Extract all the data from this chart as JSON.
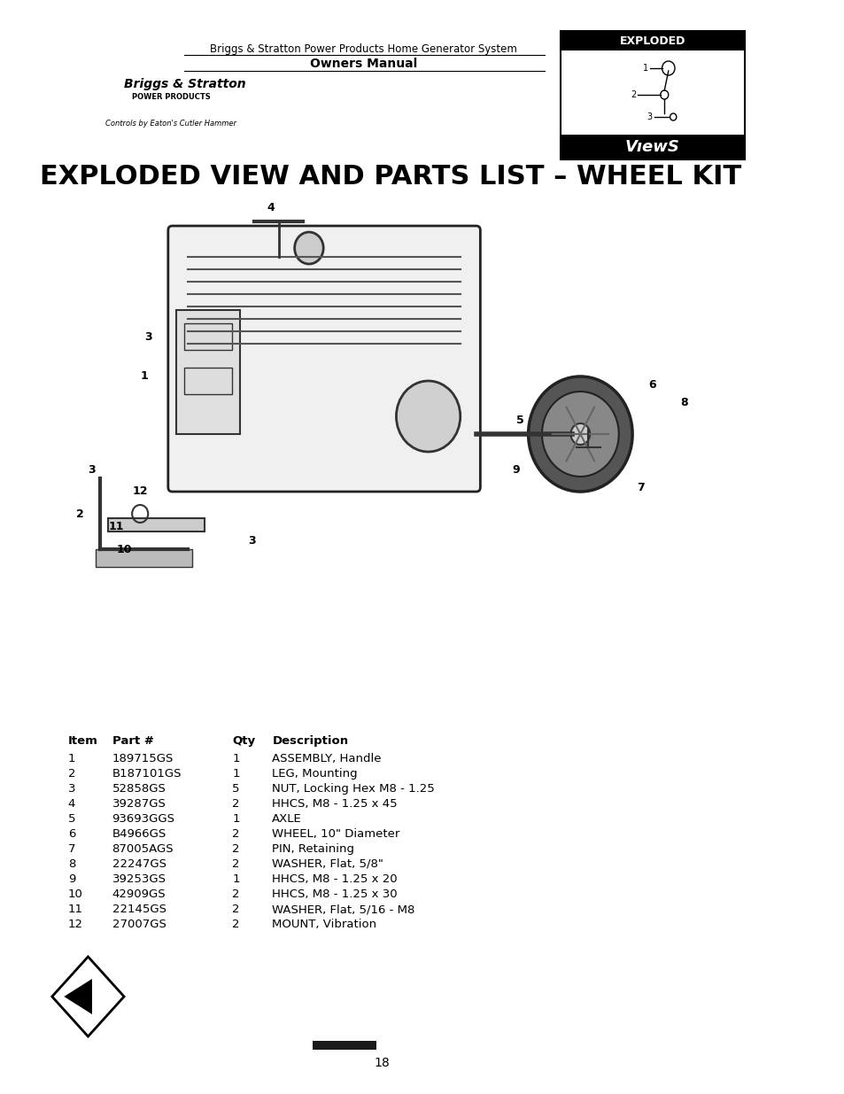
{
  "page_title": "EXPLODED VIEW AND PARTS LIST – WHEEL KIT",
  "header_line1": "Briggs & Stratton Power Products Home Generator System",
  "header_line2": "Owners Manual",
  "page_number": "18",
  "background_color": "#ffffff",
  "table_headers": [
    "Item",
    "Part #",
    "Qty",
    "Description"
  ],
  "table_rows": [
    [
      "1",
      "189715GS",
      "1",
      "ASSEMBLY, Handle"
    ],
    [
      "2",
      "B187101GS",
      "1",
      "LEG, Mounting"
    ],
    [
      "3",
      "52858GS",
      "5",
      "NUT, Locking Hex M8 - 1.25"
    ],
    [
      "4",
      "39287GS",
      "2",
      "HHCS, M8 - 1.25 x 45"
    ],
    [
      "5",
      "93693GGS",
      "1",
      "AXLE"
    ],
    [
      "6",
      "B4966GS",
      "2",
      "WHEEL, 10\" Diameter"
    ],
    [
      "7",
      "87005AGS",
      "2",
      "PIN, Retaining"
    ],
    [
      "8",
      "22247GS",
      "2",
      "WASHER, Flat, 5/8\""
    ],
    [
      "9",
      "39253GS",
      "1",
      "HHCS, M8 - 1.25 x 20"
    ],
    [
      "10",
      "42909GS",
      "2",
      "HHCS, M8 - 1.25 x 30"
    ],
    [
      "11",
      "22145GS",
      "2",
      "WASHER, Flat, 5/16 - M8"
    ],
    [
      "12",
      "27007GS",
      "2",
      "MOUNT, Vibration"
    ]
  ],
  "diagram_label_numbers": [
    "1",
    "2",
    "3",
    "3",
    "3",
    "4",
    "5",
    "6",
    "7",
    "8",
    "9",
    "10",
    "11",
    "12"
  ],
  "footer_bar_color": "#1a1a1a",
  "title_font_size": 22,
  "header_font_size": 9,
  "table_font_size": 9.5
}
